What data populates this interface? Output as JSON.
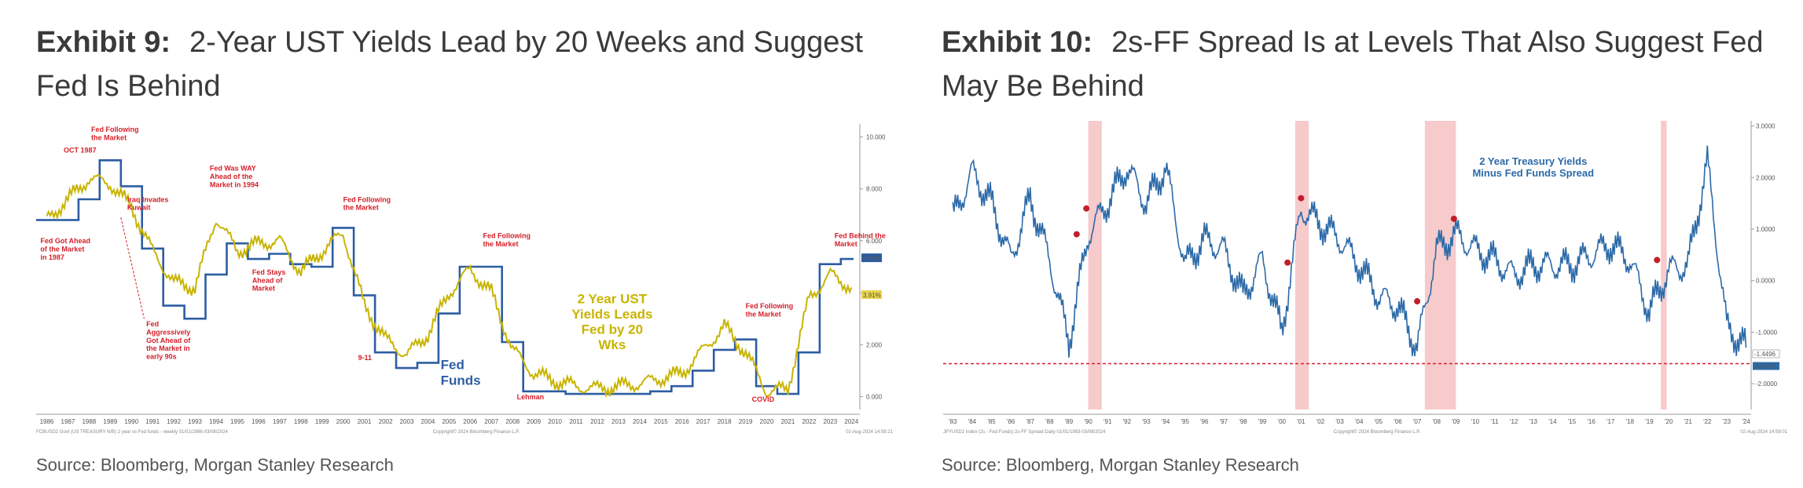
{
  "left": {
    "label": "Exhibit 9:",
    "title": "2-Year UST Yields Lead by 20 Weeks and Suggest Fed Is Behind",
    "source": "Source: Bloomberg, Morgan Stanley Research",
    "footer_left": "FCBUSD2 Govt (US TREASURY N/B) 2 year vs Fed funds - weekly 01/01/1986-03/08/2024",
    "footer_mid": "Copyright© 2024 Bloomberg Finance L.P.",
    "footer_right": "02-Aug-2024 14:58:21",
    "chart_data": {
      "type": "line",
      "x": [
        1986,
        1987,
        1988,
        1989,
        1990,
        1991,
        1992,
        1993,
        1994,
        1995,
        1996,
        1997,
        1998,
        1999,
        2000,
        2001,
        2002,
        2003,
        2004,
        2005,
        2006,
        2007,
        2008,
        2009,
        2010,
        2011,
        2012,
        2013,
        2014,
        2015,
        2016,
        2017,
        2018,
        2019,
        2020,
        2021,
        2022,
        2023,
        2024
      ],
      "xtick_labels": [
        "1986",
        "1987",
        "1988",
        "1989",
        "1990",
        "1991",
        "1992",
        "1993",
        "1994",
        "1995",
        "1996",
        "1997",
        "1998",
        "1999",
        "2000",
        "2001",
        "2002",
        "2003",
        "2004",
        "2005",
        "2006",
        "2007",
        "2008",
        "2009",
        "2010",
        "2011",
        "2012",
        "2013",
        "2014",
        "2015",
        "2016",
        "2017",
        "2018",
        "2019",
        "2020",
        "2021",
        "2022",
        "2023",
        "2024"
      ],
      "ytick_labels": [
        "10.000",
        "8.000",
        "6.000",
        "4.000",
        "2.000",
        "0.000"
      ],
      "ylim": [
        -0.5,
        10.5
      ],
      "series": [
        {
          "name": "2 Year UST Yields Leads Fed by 20 Wks",
          "color": "#c8b400",
          "values": [
            6.8,
            7.6,
            8.4,
            8.2,
            7.3,
            5.6,
            4.4,
            4.2,
            6.9,
            5.6,
            5.9,
            6.0,
            4.8,
            5.6,
            6.3,
            3.5,
            2.2,
            1.6,
            2.4,
            4.0,
            4.9,
            4.0,
            1.8,
            0.9,
            0.6,
            0.4,
            0.3,
            0.4,
            0.5,
            0.7,
            0.9,
            1.8,
            2.7,
            1.7,
            0.2,
            0.3,
            3.8,
            4.7,
            4.2
          ]
        },
        {
          "name": "Fed Funds",
          "color": "#2d5da3",
          "values": [
            6.8,
            6.8,
            7.6,
            9.1,
            8.1,
            5.7,
            3.5,
            3.0,
            4.7,
            5.9,
            5.3,
            5.5,
            5.1,
            5.0,
            6.5,
            3.9,
            1.7,
            1.1,
            1.3,
            3.2,
            5.0,
            5.0,
            2.1,
            0.2,
            0.2,
            0.1,
            0.1,
            0.1,
            0.1,
            0.2,
            0.4,
            1.0,
            1.8,
            2.2,
            0.4,
            0.1,
            1.7,
            5.1,
            5.3
          ]
        }
      ],
      "end_labels": [
        "5.330",
        "3.91%"
      ],
      "annotations": [
        {
          "text": "Fed Following the Market",
          "x": 1988.6,
          "y": 10.2
        },
        {
          "text": "OCT 1987",
          "x": 1987.3,
          "y": 9.4
        },
        {
          "text": "Iraq Invades Kuwait",
          "x": 1990.3,
          "y": 7.5
        },
        {
          "text": "Fed Got Ahead of the Market in 1987",
          "x": 1986.2,
          "y": 5.9
        },
        {
          "text": "Fed Was WAY Ahead of the Market in 1994",
          "x": 1994.2,
          "y": 8.7
        },
        {
          "text": "Fed Stays Ahead of Market",
          "x": 1996.2,
          "y": 4.7
        },
        {
          "text": "Fed Aggressively Got Ahead of the Market in early 90s",
          "x": 1991.2,
          "y": 2.7
        },
        {
          "text": "Fed Following the Market",
          "x": 2000.5,
          "y": 7.5
        },
        {
          "text": "9-11",
          "x": 2001.2,
          "y": 1.4
        },
        {
          "text": "Fed Following the Market",
          "x": 2007.1,
          "y": 6.1
        },
        {
          "text": "Lehman",
          "x": 2008.7,
          "y": -0.1
        },
        {
          "text": "Fed Following the Market",
          "x": 2019.5,
          "y": 3.4
        },
        {
          "text": "COVID",
          "x": 2019.8,
          "y": -0.2
        },
        {
          "text": "Fed Behind the Market",
          "x": 2023.7,
          "y": 6.1
        }
      ],
      "series_labels": [
        {
          "text": "2 Year UST Yields Leads Fed by 20 Wks",
          "color": "#c8b400"
        },
        {
          "text": "Fed Funds",
          "color": "#2d5da3"
        }
      ]
    }
  },
  "right": {
    "label": "Exhibit 10:",
    "title": "2s-FF Spread Is at Levels That Also Suggest Fed May Be Behind",
    "source": "Source: Bloomberg, Morgan Stanley Research",
    "footer_left": "JPYUSD2 Index (2s - Fed Funds) 2s-FF Spread Daily 01/01/1983-03/08/2024",
    "footer_mid": "Copyright© 2024 Bloomberg Finance L.P.",
    "footer_right": "02-Aug-2024 14:59:01",
    "chart_data": {
      "type": "line",
      "x": [
        1983,
        1984,
        1985,
        1986,
        1987,
        1988,
        1989,
        1990,
        1991,
        1992,
        1993,
        1994,
        1995,
        1996,
        1997,
        1998,
        1999,
        2000,
        2001,
        2002,
        2003,
        2004,
        2005,
        2006,
        2007,
        2008,
        2009,
        2010,
        2011,
        2012,
        2013,
        2014,
        2015,
        2016,
        2017,
        2018,
        2019,
        2020,
        2021,
        2022,
        2023,
        2024
      ],
      "xtick_labels": [
        "'83",
        "'84",
        "'85",
        "'86",
        "'87",
        "'88",
        "'89",
        "'90",
        "'91",
        "'92",
        "'93",
        "'94",
        "'95",
        "'96",
        "'97",
        "'98",
        "'99",
        "'00",
        "'01",
        "'02",
        "'03",
        "'04",
        "'05",
        "'06",
        "'07",
        "'08",
        "'09",
        "'10",
        "'11",
        "'12",
        "'13",
        "'14",
        "'15",
        "'16",
        "'17",
        "'18",
        "'19",
        "'20",
        "'21",
        "'22",
        "'23",
        "'24"
      ],
      "ytick_labels": [
        "3.0000",
        "2.0000",
        "1.0000",
        "0.0000",
        "-1.0000",
        "-2.0000"
      ],
      "ylim": [
        -2.5,
        3.1
      ],
      "series": [
        {
          "name": "2 Year Treasury Yields Minus Fed Funds Spread",
          "color": "#2c6aa8",
          "values": [
            1.2,
            2.1,
            1.5,
            0.4,
            1.6,
            0.4,
            -1.2,
            0.9,
            1.5,
            2.2,
            1.5,
            2.2,
            0.3,
            0.8,
            0.6,
            -0.3,
            0.4,
            -1.0,
            1.4,
            1.1,
            0.8,
            0.3,
            -0.3,
            -0.5,
            -1.3,
            0.6,
            0.9,
            0.6,
            0.4,
            0.1,
            0.3,
            0.3,
            0.3,
            0.5,
            0.7,
            0.4,
            -0.6,
            0.2,
            0.3,
            2.3,
            -0.9,
            -1.3
          ]
        }
      ],
      "recession_bands": [
        [
          1990.5,
          1991.2
        ],
        [
          2001.2,
          2001.9
        ],
        [
          2007.9,
          2009.5
        ],
        [
          2020.1,
          2020.4
        ]
      ],
      "markers": [
        {
          "x": 1989.9,
          "y": 0.9
        },
        {
          "x": 1990.4,
          "y": 1.4
        },
        {
          "x": 2000.8,
          "y": 0.35
        },
        {
          "x": 2001.5,
          "y": 1.6
        },
        {
          "x": 2007.5,
          "y": -0.4
        },
        {
          "x": 2009.4,
          "y": 1.2
        },
        {
          "x": 2019.9,
          "y": 0.4
        }
      ],
      "reference_line": {
        "y": -1.61,
        "color": "#d6202a"
      },
      "end_labels": [
        "-1.4496",
        "-1.6100"
      ],
      "series_labels": [
        {
          "text": "2 Year Treasury Yields Minus Fed Funds Spread",
          "color": "#2c6aa8"
        }
      ]
    }
  }
}
